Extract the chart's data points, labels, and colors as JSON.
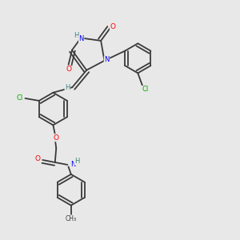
{
  "bg_color": "#e8e8e8",
  "bond_color": "#3a3a3a",
  "atom_colors": {
    "O": "#ff0000",
    "N": "#0000ff",
    "Cl": "#00aa00",
    "H": "#408080",
    "C": "#3a3a3a",
    "CH3": "#3a3a3a"
  },
  "figsize": [
    3.0,
    3.0
  ],
  "dpi": 100
}
